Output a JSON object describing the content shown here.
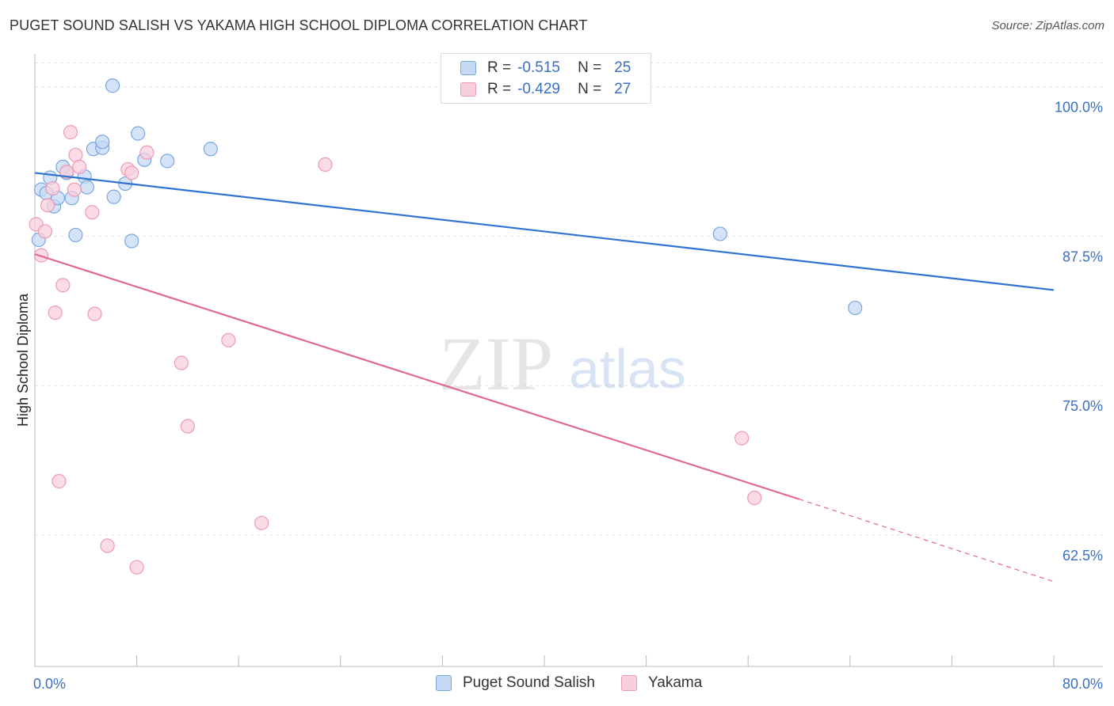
{
  "header": {
    "title": "PUGET SOUND SALISH VS YAKAMA HIGH SCHOOL DIPLOMA CORRELATION CHART",
    "source": "Source: ZipAtlas.com"
  },
  "watermark": {
    "zip": "ZIP",
    "atlas": "atlas"
  },
  "colors": {
    "blue_fill": "#c5d9f5",
    "blue_stroke": "#7aa6e0",
    "blue_line": "#2f72d0",
    "pink_fill": "#f9cfdc",
    "pink_stroke": "#ee9ab5",
    "pink_line": "#e0688f",
    "tick_text": "#3a6fc4",
    "grid": "#e4e4e4"
  },
  "legend": {
    "rows": [
      {
        "r_label": "R =",
        "r_value": "-0.515",
        "n_label": "N =",
        "n_value": "25"
      },
      {
        "r_label": "R =",
        "r_value": "-0.429",
        "n_label": "N =",
        "n_value": "27"
      }
    ]
  },
  "bottom_legend": {
    "series1": "Puget Sound Salish",
    "series2": "Yakama"
  },
  "chart_data": {
    "type": "scatter",
    "title": "PUGET SOUND SALISH VS YAKAMA HIGH SCHOOL DIPLOMA CORRELATION CHART",
    "xlabel": "",
    "ylabel": "High School Diploma",
    "xlim": [
      0,
      80
    ],
    "ylim": [
      51.5,
      102.5
    ],
    "x_tick_labels": [
      "0.0%",
      "80.0%"
    ],
    "y_ticks": [
      62.5,
      75.0,
      87.5,
      100.0
    ],
    "y_tick_labels": [
      "62.5%",
      "75.0%",
      "87.5%",
      "100.0%"
    ],
    "grid": true,
    "series": [
      {
        "name": "Puget Sound Salish",
        "color": "#7aa6e0",
        "points": [
          [
            0.3,
            87.2
          ],
          [
            0.5,
            91.4
          ],
          [
            0.9,
            91.1
          ],
          [
            1.2,
            92.4
          ],
          [
            1.5,
            90.0
          ],
          [
            1.8,
            90.7
          ],
          [
            2.2,
            93.3
          ],
          [
            2.5,
            92.8
          ],
          [
            2.9,
            90.7
          ],
          [
            3.2,
            87.6
          ],
          [
            3.9,
            92.5
          ],
          [
            4.1,
            91.6
          ],
          [
            4.6,
            94.8
          ],
          [
            5.3,
            94.9
          ],
          [
            5.3,
            95.4
          ],
          [
            6.1,
            100.1
          ],
          [
            6.2,
            90.8
          ],
          [
            7.1,
            91.9
          ],
          [
            7.6,
            87.1
          ],
          [
            8.1,
            96.1
          ],
          [
            8.6,
            93.9
          ],
          [
            10.4,
            93.8
          ],
          [
            13.8,
            94.8
          ],
          [
            53.8,
            87.7
          ],
          [
            64.4,
            81.5
          ]
        ],
        "trend": {
          "x1": 0.0,
          "y1": 92.8,
          "x2": 80.0,
          "y2": 83.0
        }
      },
      {
        "name": "Yakama",
        "color": "#ee9ab5",
        "points": [
          [
            0.1,
            88.5
          ],
          [
            0.5,
            85.9
          ],
          [
            0.8,
            87.9
          ],
          [
            1.0,
            90.1
          ],
          [
            1.4,
            91.5
          ],
          [
            1.6,
            81.1
          ],
          [
            1.9,
            67.0
          ],
          [
            2.2,
            83.4
          ],
          [
            2.5,
            92.9
          ],
          [
            2.8,
            96.2
          ],
          [
            3.1,
            91.4
          ],
          [
            3.2,
            94.3
          ],
          [
            3.5,
            93.3
          ],
          [
            4.5,
            89.5
          ],
          [
            4.7,
            81.0
          ],
          [
            5.7,
            61.6
          ],
          [
            7.3,
            93.1
          ],
          [
            7.6,
            92.8
          ],
          [
            8.0,
            59.8
          ],
          [
            8.8,
            94.5
          ],
          [
            11.5,
            76.9
          ],
          [
            12.0,
            71.6
          ],
          [
            15.2,
            78.8
          ],
          [
            17.8,
            63.5
          ],
          [
            22.8,
            93.5
          ],
          [
            55.5,
            70.6
          ],
          [
            56.5,
            65.6
          ]
        ],
        "trend": {
          "x1": 0.0,
          "y1": 86.0,
          "x2": 60.0,
          "y2": 65.5
        },
        "trend_extension": {
          "x1": 60.0,
          "y1": 65.5,
          "x2": 80.0,
          "y2": 58.6
        }
      }
    ]
  }
}
